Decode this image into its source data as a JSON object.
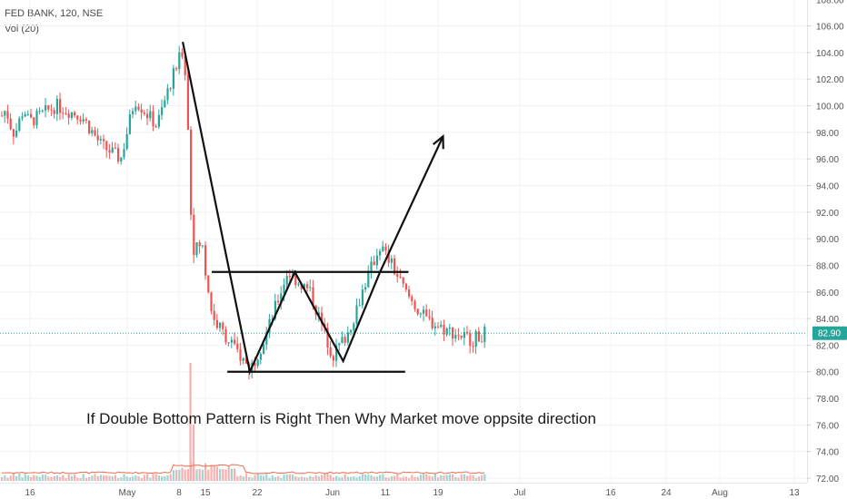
{
  "header": {
    "symbol_line": "FED BANK, 120, NSE",
    "volume_line": "Vol (20)"
  },
  "colors": {
    "up": "#26a69a",
    "down": "#ef5350",
    "up_volume": "#9fd4cf",
    "down_volume": "#f4b1b0",
    "volume_ma": "#ef6c4a",
    "price_line": "#26a69a",
    "annotation": "#111111",
    "axis_text": "#555555",
    "grid": "#f1f3f6"
  },
  "annotation": {
    "text": "If Double Bottom Pattern is Right Then Why Market move oppsite direction"
  },
  "chart_data": {
    "type": "candlestick",
    "title": "FED BANK, 120, NSE",
    "ylim": [
      71.6,
      108.4
    ],
    "yticks": [
      "72.00",
      "74.00",
      "76.00",
      "78.00",
      "80.00",
      "82.00",
      "84.00",
      "86.00",
      "88.00",
      "90.00",
      "92.00",
      "94.00",
      "96.00",
      "98.00",
      "100.00",
      "102.00",
      "104.00",
      "106.00",
      "108.00"
    ],
    "xticks": [
      "16",
      "May",
      "8",
      "15",
      "22",
      "Jun",
      "11",
      "19",
      "Jul",
      "16",
      "24",
      "Aug",
      "13"
    ],
    "last_price": "82.90",
    "price_path": [
      {
        "date": "Apr 16",
        "price": 98.8
      },
      {
        "date": "Apr 20",
        "price": 100.0
      },
      {
        "date": "Apr 24",
        "price": 99.2
      },
      {
        "date": "Apr 27",
        "price": 97.0
      },
      {
        "date": "Apr 30",
        "price": 96.0
      },
      {
        "date": "May 2",
        "price": 100.5
      },
      {
        "date": "May 5",
        "price": 98.5
      },
      {
        "date": "May 7",
        "price": 102.0
      },
      {
        "date": "May 9",
        "price": 104.2
      },
      {
        "date": "May 10",
        "price": 101.5
      },
      {
        "date": "May 11",
        "price": 92.5
      },
      {
        "date": "May 12",
        "price": 89.0
      },
      {
        "date": "May 14",
        "price": 89.8
      },
      {
        "date": "May 15",
        "price": 87.5
      },
      {
        "date": "May 16",
        "price": 84.0
      },
      {
        "date": "May 18",
        "price": 82.5
      },
      {
        "date": "May 21",
        "price": 80.2
      },
      {
        "date": "May 23",
        "price": 82.5
      },
      {
        "date": "May 26",
        "price": 87.5
      },
      {
        "date": "May 29",
        "price": 86.0
      },
      {
        "date": "Jun 1",
        "price": 81.2
      },
      {
        "date": "Jun 4",
        "price": 83.0
      },
      {
        "date": "Jun 7",
        "price": 86.5
      },
      {
        "date": "Jun 10",
        "price": 89.5
      },
      {
        "date": "Jun 12",
        "price": 88.0
      },
      {
        "date": "Jun 14",
        "price": 86.0
      },
      {
        "date": "Jun 17",
        "price": 84.0
      },
      {
        "date": "Jun 20",
        "price": 83.2
      },
      {
        "date": "Jun 24",
        "price": 82.4
      },
      {
        "date": "Jun 26",
        "price": 82.9
      }
    ],
    "drawings": {
      "resistance_line": {
        "price": 87.5,
        "from": "May 15",
        "to": "Jun 13"
      },
      "support_line": {
        "price": 80.0,
        "from": "May 16",
        "to": "Jun 7"
      },
      "zigzag": [
        {
          "date": "May 9",
          "price": 104.8
        },
        {
          "date": "May 21",
          "price": 80.0
        },
        {
          "date": "May 27",
          "price": 87.5
        },
        {
          "date": "Jun 3",
          "price": 80.8
        },
        {
          "date": "Jun 10",
          "price": 87.5
        }
      ],
      "arrow_target": {
        "date": "Jun 17",
        "price": 97.7
      }
    }
  }
}
